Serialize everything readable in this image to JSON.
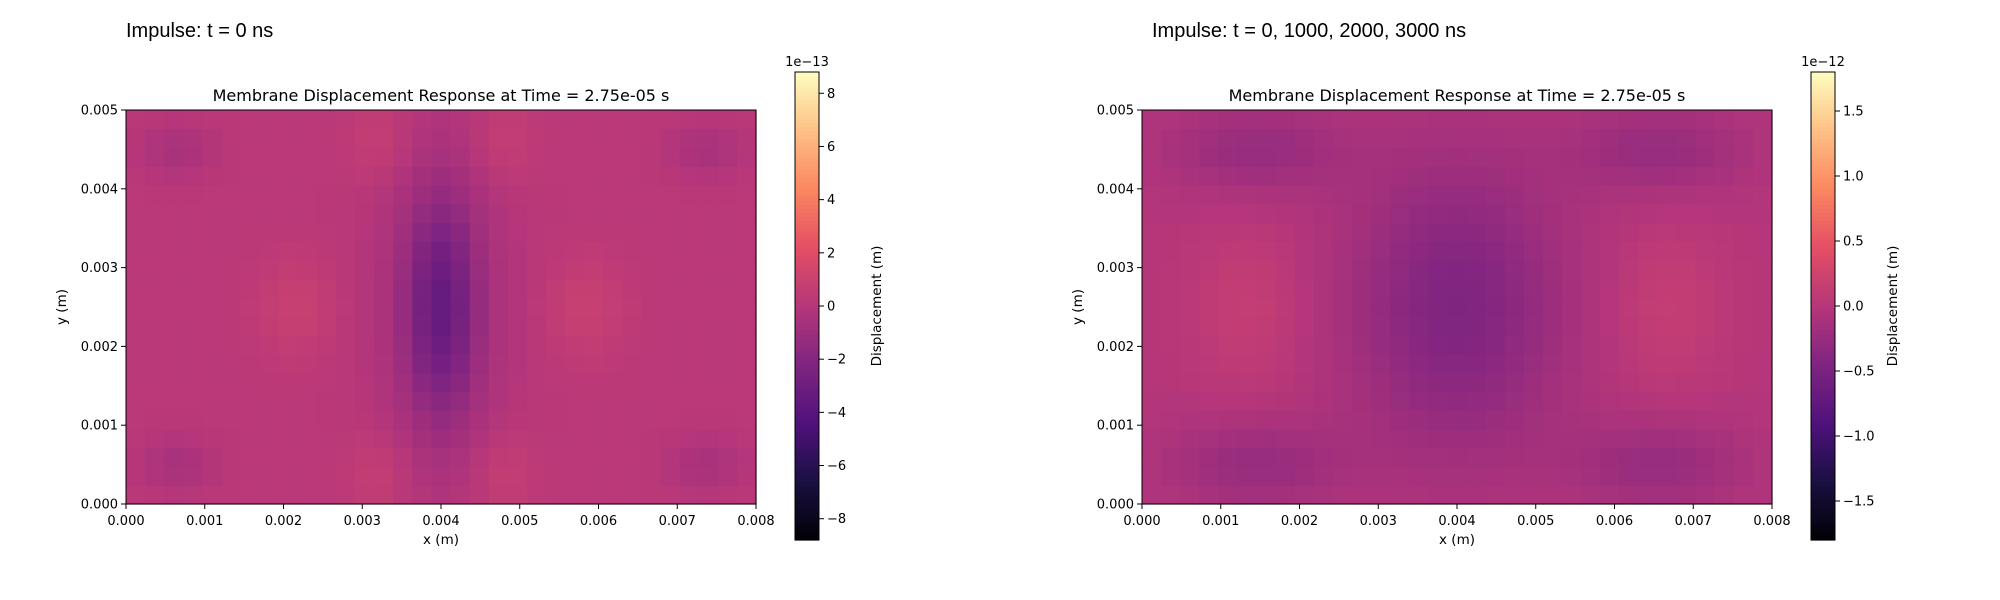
{
  "figure": {
    "titles": [
      "Impulse: t = 0 ns",
      "Impulse: t = 0, 1000, 2000, 3000 ns"
    ]
  },
  "chart_data": [
    {
      "type": "heatmap",
      "title": "Membrane Displacement Response at Time = 2.75e-05 s",
      "xlabel": "x (m)",
      "ylabel": "y (m)",
      "xlim": [
        0,
        0.008
      ],
      "ylim": [
        0,
        0.005
      ],
      "xticks": [
        "0.000",
        "0.001",
        "0.002",
        "0.003",
        "0.004",
        "0.005",
        "0.006",
        "0.007",
        "0.008"
      ],
      "yticks": [
        "0.000",
        "0.001",
        "0.002",
        "0.003",
        "0.004",
        "0.005"
      ],
      "colormap": "magma",
      "colorbar": {
        "label": "Displacement (m)",
        "offset_text": "1e−13",
        "range": [
          -8.8,
          8.8
        ],
        "ticks": [
          -8,
          -6,
          -4,
          -2,
          0,
          2,
          4,
          6,
          8
        ],
        "tick_labels": [
          "−8",
          "−6",
          "−4",
          "−2",
          "0",
          "2",
          "4",
          "6",
          "8"
        ]
      },
      "nx": 33,
      "ny": 21,
      "approx_range_shown": [
        -2.5,
        1.0
      ]
    },
    {
      "type": "heatmap",
      "title": "Membrane Displacement Response at Time = 2.75e-05 s",
      "xlabel": "x (m)",
      "ylabel": "y (m)",
      "xlim": [
        0,
        0.008
      ],
      "ylim": [
        0,
        0.005
      ],
      "xticks": [
        "0.000",
        "0.001",
        "0.002",
        "0.003",
        "0.004",
        "0.005",
        "0.006",
        "0.007",
        "0.008"
      ],
      "yticks": [
        "0.000",
        "0.001",
        "0.002",
        "0.003",
        "0.004",
        "0.005"
      ],
      "colormap": "magma",
      "colorbar": {
        "label": "Displacement (m)",
        "offset_text": "1e−12",
        "range": [
          -1.8,
          1.8
        ],
        "ticks": [
          -1.5,
          -1.0,
          -0.5,
          0.0,
          0.5,
          1.0,
          1.5
        ],
        "tick_labels": [
          "−1.5",
          "−1.0",
          "−0.5",
          "0.0",
          "0.5",
          "1.0",
          "1.5"
        ]
      },
      "nx": 33,
      "ny": 21,
      "approx_range_shown": [
        -0.6,
        0.15
      ]
    }
  ]
}
